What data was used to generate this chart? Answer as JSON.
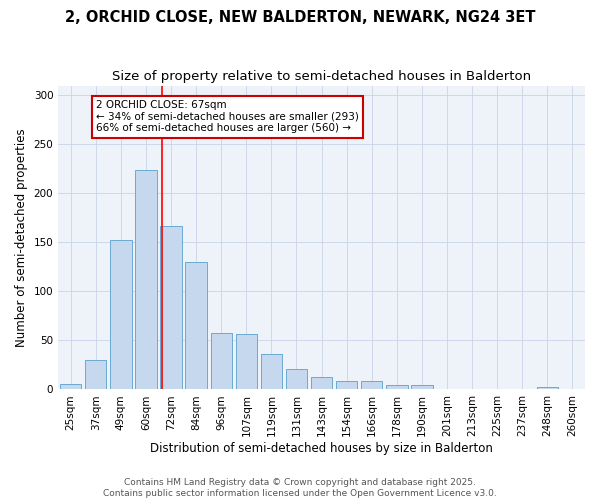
{
  "title": "2, ORCHID CLOSE, NEW BALDERTON, NEWARK, NG24 3ET",
  "subtitle": "Size of property relative to semi-detached houses in Balderton",
  "xlabel": "Distribution of semi-detached houses by size in Balderton",
  "ylabel": "Number of semi-detached properties",
  "categories": [
    "25sqm",
    "37sqm",
    "49sqm",
    "60sqm",
    "72sqm",
    "84sqm",
    "96sqm",
    "107sqm",
    "119sqm",
    "131sqm",
    "143sqm",
    "154sqm",
    "166sqm",
    "178sqm",
    "190sqm",
    "201sqm",
    "213sqm",
    "225sqm",
    "237sqm",
    "248sqm",
    "260sqm"
  ],
  "values": [
    6,
    30,
    152,
    224,
    167,
    130,
    58,
    57,
    36,
    21,
    13,
    9,
    9,
    5,
    5,
    0,
    0,
    0,
    0,
    2,
    0
  ],
  "bar_color": "#c5d8ed",
  "bar_edge_color": "#6aaad4",
  "bar_edge_width": 0.7,
  "red_line_x": 3.62,
  "property_label": "2 ORCHID CLOSE: 67sqm",
  "pct_smaller": 34,
  "count_smaller": 293,
  "pct_larger": 66,
  "count_larger": 560,
  "annotation_box_color": "#ffffff",
  "annotation_box_edge": "#cc0000",
  "ylim": [
    0,
    310
  ],
  "yticks": [
    0,
    50,
    100,
    150,
    200,
    250,
    300
  ],
  "grid_color": "#c8d4e8",
  "bg_color": "#eef2f9",
  "footer1": "Contains HM Land Registry data © Crown copyright and database right 2025.",
  "footer2": "Contains public sector information licensed under the Open Government Licence v3.0.",
  "title_fontsize": 10.5,
  "subtitle_fontsize": 9.5,
  "axis_label_fontsize": 8.5,
  "tick_fontsize": 7.5,
  "annot_fontsize": 7.5,
  "footer_fontsize": 6.5
}
